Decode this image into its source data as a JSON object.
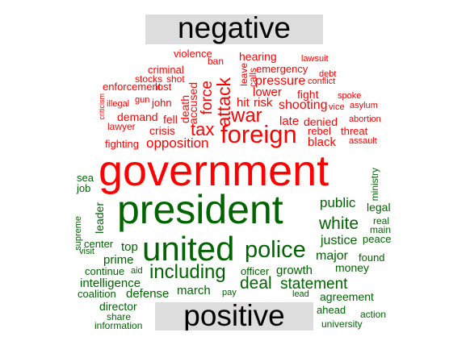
{
  "chart_data": {
    "type": "comparison_wordcloud",
    "groups": [
      {
        "name": "negative",
        "color": "#ff0000"
      },
      {
        "name": "positive",
        "color": "#006400"
      }
    ],
    "words": [
      {
        "text": "government",
        "group": "negative",
        "freq": 10
      },
      {
        "text": "foreign",
        "group": "negative",
        "freq": 5
      },
      {
        "text": "war",
        "group": "negative",
        "freq": 4.5
      },
      {
        "text": "attack",
        "group": "negative",
        "freq": 3.5
      },
      {
        "text": "tax",
        "group": "negative",
        "freq": 3.5
      },
      {
        "text": "force",
        "group": "negative",
        "freq": 3
      },
      {
        "text": "opposition",
        "group": "negative",
        "freq": 2.5
      },
      {
        "text": "crisis",
        "group": "negative",
        "freq": 2.2
      },
      {
        "text": "shooting",
        "group": "negative",
        "freq": 2.2
      },
      {
        "text": "pressure",
        "group": "negative",
        "freq": 2.2
      },
      {
        "text": "risk",
        "group": "negative",
        "freq": 2
      },
      {
        "text": "hit",
        "group": "negative",
        "freq": 2
      },
      {
        "text": "accused",
        "group": "negative",
        "freq": 2
      },
      {
        "text": "black",
        "group": "negative",
        "freq": 2
      },
      {
        "text": "late",
        "group": "negative",
        "freq": 2
      },
      {
        "text": "denied",
        "group": "negative",
        "freq": 2
      },
      {
        "text": "lower",
        "group": "negative",
        "freq": 2
      },
      {
        "text": "demand",
        "group": "negative",
        "freq": 2
      },
      {
        "text": "death",
        "group": "negative",
        "freq": 2
      },
      {
        "text": "fell",
        "group": "negative",
        "freq": 2
      },
      {
        "text": "emergency",
        "group": "negative",
        "freq": 1.8
      },
      {
        "text": "fight",
        "group": "negative",
        "freq": 1.8
      },
      {
        "text": "rebel",
        "group": "negative",
        "freq": 1.8
      },
      {
        "text": "threat",
        "group": "negative",
        "freq": 1.6
      },
      {
        "text": "hearing",
        "group": "negative",
        "freq": 1.7
      },
      {
        "text": "violence",
        "group": "negative",
        "freq": 1.7
      },
      {
        "text": "criminal",
        "group": "negative",
        "freq": 1.6
      },
      {
        "text": "enforcement",
        "group": "negative",
        "freq": 1.6
      },
      {
        "text": "lost",
        "group": "negative",
        "freq": 1.6
      },
      {
        "text": "john",
        "group": "negative",
        "freq": 1.6
      },
      {
        "text": "fighting",
        "group": "negative",
        "freq": 1.5
      },
      {
        "text": "lawyer",
        "group": "negative",
        "freq": 1.5
      },
      {
        "text": "stocks",
        "group": "negative",
        "freq": 1.5
      },
      {
        "text": "shot",
        "group": "negative",
        "freq": 1.5
      },
      {
        "text": "ban",
        "group": "negative",
        "freq": 1.5
      },
      {
        "text": "leave",
        "group": "negative",
        "freq": 1.5
      },
      {
        "text": "calls",
        "group": "negative",
        "freq": 1.5
      },
      {
        "text": "lawsuit",
        "group": "negative",
        "freq": 1.3
      },
      {
        "text": "debt",
        "group": "negative",
        "freq": 1.3
      },
      {
        "text": "conflict",
        "group": "negative",
        "freq": 1.3
      },
      {
        "text": "spoke",
        "group": "negative",
        "freq": 1.3
      },
      {
        "text": "asylum",
        "group": "negative",
        "freq": 1.3
      },
      {
        "text": "vice",
        "group": "negative",
        "freq": 1.3
      },
      {
        "text": "abortion",
        "group": "negative",
        "freq": 1.3
      },
      {
        "text": "assault",
        "group": "negative",
        "freq": 1.3
      },
      {
        "text": "gun",
        "group": "negative",
        "freq": 1.3
      },
      {
        "text": "illegal",
        "group": "negative",
        "freq": 1.3
      },
      {
        "text": "criticism",
        "group": "negative",
        "freq": 1.1
      },
      {
        "text": "president",
        "group": "positive",
        "freq": 9
      },
      {
        "text": "united",
        "group": "positive",
        "freq": 7.5
      },
      {
        "text": "police",
        "group": "positive",
        "freq": 5
      },
      {
        "text": "including",
        "group": "positive",
        "freq": 4
      },
      {
        "text": "white",
        "group": "positive",
        "freq": 3.5
      },
      {
        "text": "deal",
        "group": "positive",
        "freq": 3.5
      },
      {
        "text": "statement",
        "group": "positive",
        "freq": 3.2
      },
      {
        "text": "public",
        "group": "positive",
        "freq": 2.5
      },
      {
        "text": "justice",
        "group": "positive",
        "freq": 2.3
      },
      {
        "text": "major",
        "group": "positive",
        "freq": 2.3
      },
      {
        "text": "march",
        "group": "positive",
        "freq": 2.3
      },
      {
        "text": "growth",
        "group": "positive",
        "freq": 2.2
      },
      {
        "text": "prime",
        "group": "positive",
        "freq": 2
      },
      {
        "text": "top",
        "group": "positive",
        "freq": 2
      },
      {
        "text": "intelligence",
        "group": "positive",
        "freq": 2
      },
      {
        "text": "defense",
        "group": "positive",
        "freq": 2
      },
      {
        "text": "money",
        "group": "positive",
        "freq": 1.8
      },
      {
        "text": "agreement",
        "group": "positive",
        "freq": 1.8
      },
      {
        "text": "director",
        "group": "positive",
        "freq": 1.8
      },
      {
        "text": "legal",
        "group": "positive",
        "freq": 1.8
      },
      {
        "text": "leader",
        "group": "positive",
        "freq": 1.8
      },
      {
        "text": "officer",
        "group": "positive",
        "freq": 1.6
      },
      {
        "text": "continue",
        "group": "positive",
        "freq": 1.6
      },
      {
        "text": "center",
        "group": "positive",
        "freq": 1.6
      },
      {
        "text": "peace",
        "group": "positive",
        "freq": 1.6
      },
      {
        "text": "found",
        "group": "positive",
        "freq": 1.6
      },
      {
        "text": "coalition",
        "group": "positive",
        "freq": 1.6
      },
      {
        "text": "ahead",
        "group": "positive",
        "freq": 1.6
      },
      {
        "text": "action",
        "group": "positive",
        "freq": 1.5
      },
      {
        "text": "university",
        "group": "positive",
        "freq": 1.5
      },
      {
        "text": "information",
        "group": "positive",
        "freq": 1.5
      },
      {
        "text": "share",
        "group": "positive",
        "freq": 1.5
      },
      {
        "text": "real",
        "group": "positive",
        "freq": 1.4
      },
      {
        "text": "main",
        "group": "positive",
        "freq": 1.4
      },
      {
        "text": "ministry",
        "group": "positive",
        "freq": 1.4
      },
      {
        "text": "sea",
        "group": "positive",
        "freq": 1.4
      },
      {
        "text": "job",
        "group": "positive",
        "freq": 1.4
      },
      {
        "text": "supreme",
        "group": "positive",
        "freq": 1.3
      },
      {
        "text": "visit",
        "group": "positive",
        "freq": 1.3
      },
      {
        "text": "aid",
        "group": "positive",
        "freq": 1.3
      },
      {
        "text": "pay",
        "group": "positive",
        "freq": 1.3
      },
      {
        "text": "lead",
        "group": "positive",
        "freq": 1.3
      }
    ]
  }
}
